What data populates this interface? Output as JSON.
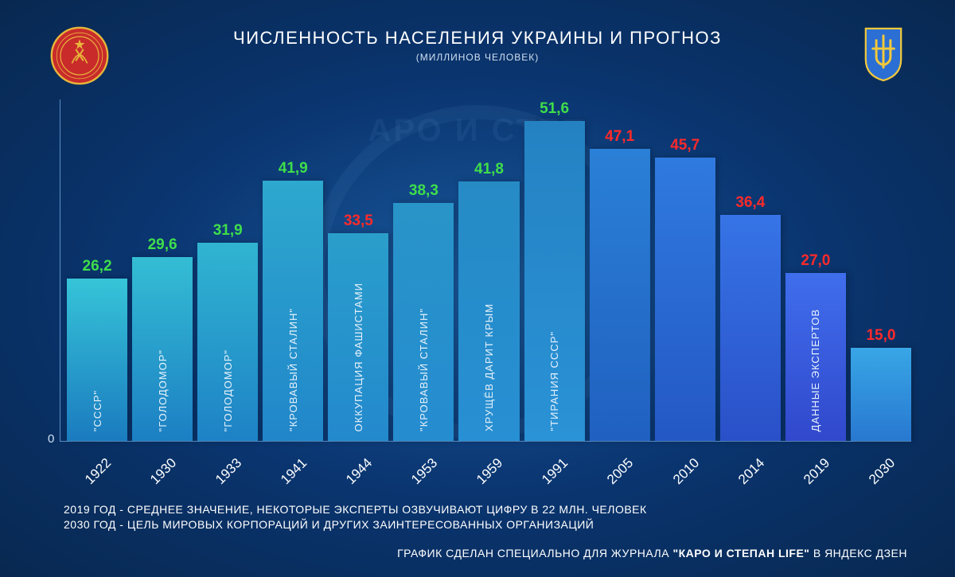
{
  "header": {
    "title": "ЧИСЛЕННОСТЬ НАСЕЛЕНИЯ УКРАИНЫ И ПРОГНОЗ",
    "subtitle": "(МИЛЛИНОВ ЧЕЛОВЕК)"
  },
  "chart": {
    "type": "bar",
    "y_max": 55,
    "zero_label": "0",
    "value_colors": {
      "up": "#3fde4a",
      "down": "#ff2a2a"
    },
    "value_fontsize": 19,
    "xlabel_fontsize": 17,
    "bartext_fontsize": 13,
    "axis_color": "#5a90c5",
    "bars": [
      {
        "year": "1922",
        "value": 26.2,
        "label": "26,2",
        "dir": "up",
        "text": "\"СССР\"",
        "grad_top": "#36c4d8",
        "grad_bot": "#1a7bbf"
      },
      {
        "year": "1930",
        "value": 29.6,
        "label": "29,6",
        "dir": "up",
        "text": "\"ГОЛОДОМОР\"",
        "grad_top": "#34bdd4",
        "grad_bot": "#1c7fc3"
      },
      {
        "year": "1933",
        "value": 31.9,
        "label": "31,9",
        "dir": "up",
        "text": "\"ГОЛОДОМОР\"",
        "grad_top": "#30b4d1",
        "grad_bot": "#1e82c6"
      },
      {
        "year": "1941",
        "value": 41.9,
        "label": "41,9",
        "dir": "up",
        "text": "\"КРОВАВЫЙ СТАЛИН\"",
        "grad_top": "#2da8ce",
        "grad_bot": "#2186ca"
      },
      {
        "year": "1944",
        "value": 33.5,
        "label": "33,5",
        "dir": "down",
        "text": "ОККУПАЦИЯ ФАШИСТАМИ",
        "grad_top": "#2a9ecb",
        "grad_bot": "#2389cd"
      },
      {
        "year": "1953",
        "value": 38.3,
        "label": "38,3",
        "dir": "up",
        "text": "\"КРОВАВЫЙ СТАЛИН\"",
        "grad_top": "#2894c8",
        "grad_bot": "#258cd0"
      },
      {
        "year": "1959",
        "value": 41.8,
        "label": "41,8",
        "dir": "up",
        "text": "ХРУЩЁВ ДАРИТ КРЫМ",
        "grad_top": "#268bc5",
        "grad_bot": "#278fd3"
      },
      {
        "year": "1991",
        "value": 51.6,
        "label": "51,6",
        "dir": "up",
        "text": "\"ТИРАНИЯ СССР\"",
        "grad_top": "#2482c2",
        "grad_bot": "#2a92d6"
      },
      {
        "year": "2005",
        "value": 47.1,
        "label": "47,1",
        "dir": "down",
        "text": "",
        "grad_top": "#2a80d6",
        "grad_bot": "#2060c0"
      },
      {
        "year": "2010",
        "value": 45.7,
        "label": "45,7",
        "dir": "down",
        "text": "",
        "grad_top": "#2f7adf",
        "grad_bot": "#2458c4"
      },
      {
        "year": "2014",
        "value": 36.4,
        "label": "36,4",
        "dir": "down",
        "text": "",
        "grad_top": "#3674e6",
        "grad_bot": "#2a50c8"
      },
      {
        "year": "2019",
        "value": 27.0,
        "label": "27,0",
        "dir": "down",
        "text": "ДАННЫЕ ЭКСПЕРТОВ",
        "grad_top": "#3f6eec",
        "grad_bot": "#3148cc"
      },
      {
        "year": "2030",
        "value": 15.0,
        "label": "15,0",
        "dir": "down",
        "text": "",
        "grad_top": "#38a6e6",
        "grad_bot": "#2878d0"
      }
    ]
  },
  "footer": {
    "note1": "2019 ГОД - СРЕДНЕЕ ЗНАЧЕНИЕ, НЕКОТОРЫЕ ЭКСПЕРТЫ ОЗВУЧИВАЮТ ЦИФРУ В 22 МЛН. ЧЕЛОВЕК",
    "note2": "2030 ГОД - ЦЕЛЬ МИРОВЫХ КОРПОРАЦИЙ И ДРУГИХ ЗАИНТЕРЕСОВАННЫХ ОРГАНИЗАЦИЙ",
    "credit_pre": "ГРАФИК СДЕЛАН СПЕЦИАЛЬНО ДЛЯ ЖУРНАЛА ",
    "credit_bold": "\"КАРО И СТЕПАН LIFE\"",
    "credit_post": " В ЯНДЕКС ДЗЕН"
  },
  "emblems": {
    "ussr": {
      "red": "#c92b2b",
      "gold": "#e8b53a"
    },
    "ukraine": {
      "blue": "#2b6fd4",
      "gold": "#f3c93a"
    }
  }
}
